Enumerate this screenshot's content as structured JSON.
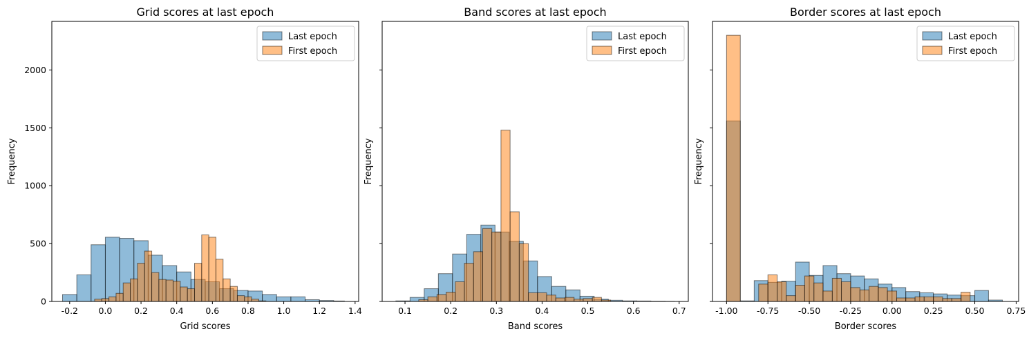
{
  "colors": {
    "last": "#1f77b4",
    "first": "#ff7f0e",
    "edge": "#000000"
  },
  "chart_data": [
    {
      "type": "bar",
      "title": "Grid scores at last epoch",
      "xlabel": "Grid scores",
      "ylabel": "Frequency",
      "xlim": [
        -0.3,
        1.42
      ],
      "ylim": [
        0,
        2420
      ],
      "xticks": [
        "-0.2",
        "0.0",
        "0.2",
        "0.4",
        "0.6",
        "0.8",
        "1.0",
        "1.2",
        "1.4"
      ],
      "xtick_values": [
        -0.2,
        0.0,
        0.2,
        0.4,
        0.6,
        0.8,
        1.0,
        1.2,
        1.4
      ],
      "yticks": [
        "0",
        "500",
        "1000",
        "1500",
        "2000"
      ],
      "ytick_values": [
        0,
        500,
        1000,
        1500,
        2000
      ],
      "legend": {
        "placement": "upper right",
        "entries": [
          "Last epoch",
          "First epoch"
        ]
      },
      "series": [
        {
          "name": "Last epoch",
          "color": "#1f77b4",
          "bin_edges": [
            -0.24,
            -0.16,
            -0.08,
            0.0,
            0.08,
            0.16,
            0.24,
            0.32,
            0.4,
            0.48,
            0.56,
            0.64,
            0.72,
            0.8,
            0.88,
            0.96,
            1.04,
            1.12,
            1.2,
            1.28,
            1.34
          ],
          "values": [
            60,
            230,
            490,
            555,
            545,
            525,
            400,
            310,
            255,
            190,
            170,
            110,
            95,
            90,
            60,
            40,
            40,
            15,
            8,
            4
          ]
        },
        {
          "name": "First epoch",
          "color": "#ff7f0e",
          "bin_edges": [
            -0.06,
            -0.02,
            0.02,
            0.06,
            0.1,
            0.14,
            0.18,
            0.22,
            0.26,
            0.3,
            0.34,
            0.38,
            0.42,
            0.46,
            0.5,
            0.54,
            0.58,
            0.62,
            0.66,
            0.7,
            0.74,
            0.78,
            0.82,
            0.86,
            0.9
          ],
          "values": [
            20,
            25,
            40,
            70,
            160,
            195,
            330,
            435,
            250,
            190,
            185,
            175,
            125,
            110,
            330,
            575,
            555,
            365,
            195,
            130,
            50,
            40,
            20,
            5
          ]
        }
      ]
    },
    {
      "type": "bar",
      "title": "Band scores at last epoch",
      "xlabel": "Band scores",
      "ylabel": "Frequency",
      "xlim": [
        0.05,
        0.72
      ],
      "ylim": [
        0,
        2420
      ],
      "xticks": [
        "0.1",
        "0.2",
        "0.3",
        "0.4",
        "0.5",
        "0.6",
        "0.7"
      ],
      "xtick_values": [
        0.1,
        0.2,
        0.3,
        0.4,
        0.5,
        0.6,
        0.7
      ],
      "yticks": [],
      "ytick_values": [
        0,
        500,
        1000,
        1500,
        2000
      ],
      "legend": {
        "placement": "upper right",
        "entries": [
          "Last epoch",
          "First epoch"
        ]
      },
      "series": [
        {
          "name": "Last epoch",
          "color": "#1f77b4",
          "bin_edges": [
            0.08,
            0.111,
            0.142,
            0.173,
            0.204,
            0.235,
            0.266,
            0.297,
            0.328,
            0.359,
            0.39,
            0.421,
            0.452,
            0.483,
            0.514,
            0.545,
            0.576,
            0.607,
            0.638,
            0.669,
            0.69
          ],
          "values": [
            5,
            35,
            110,
            240,
            410,
            580,
            660,
            600,
            520,
            350,
            215,
            130,
            100,
            45,
            20,
            10,
            5,
            4,
            2,
            1
          ]
        },
        {
          "name": "First epoch",
          "color": "#ff7f0e",
          "bin_edges": [
            0.13,
            0.15,
            0.17,
            0.19,
            0.21,
            0.23,
            0.25,
            0.27,
            0.29,
            0.31,
            0.33,
            0.35,
            0.37,
            0.39,
            0.41,
            0.43,
            0.45,
            0.47,
            0.49,
            0.51,
            0.53,
            0.55
          ],
          "values": [
            15,
            40,
            60,
            80,
            170,
            330,
            430,
            630,
            600,
            1480,
            775,
            500,
            75,
            75,
            55,
            30,
            35,
            20,
            25,
            35,
            12
          ]
        }
      ]
    },
    {
      "type": "bar",
      "title": "Border scores at last epoch",
      "xlabel": "Border scores",
      "ylabel": "Frequency",
      "xlim": [
        -1.085,
        0.765
      ],
      "ylim": [
        0,
        2420
      ],
      "xticks": [
        "-1.00",
        "-0.75",
        "-0.50",
        "-0.25",
        "0.00",
        "0.25",
        "0.50",
        "0.75"
      ],
      "xtick_values": [
        -1.0,
        -0.75,
        -0.5,
        -0.25,
        0.0,
        0.25,
        0.5,
        0.75
      ],
      "yticks": [],
      "ytick_values": [
        0,
        500,
        1000,
        1500,
        2000
      ],
      "legend": {
        "placement": "upper right",
        "entries": [
          "Last epoch",
          "First epoch"
        ]
      },
      "series": [
        {
          "name": "Last epoch",
          "color": "#1f77b4",
          "bin_edges": [
            -1.0,
            -0.917,
            -0.833,
            -0.75,
            -0.667,
            -0.583,
            -0.5,
            -0.417,
            -0.333,
            -0.25,
            -0.167,
            -0.083,
            0.0,
            0.083,
            0.167,
            0.25,
            0.333,
            0.417,
            0.5,
            0.583,
            0.667
          ],
          "values": [
            1560,
            5,
            180,
            165,
            175,
            340,
            225,
            310,
            240,
            220,
            195,
            150,
            120,
            85,
            75,
            65,
            55,
            50,
            95,
            12
          ]
        },
        {
          "name": "First epoch",
          "color": "#ff7f0e",
          "bin_edges": [
            -1.0,
            -0.917,
            -0.833,
            -0.806,
            -0.75,
            -0.694,
            -0.639,
            -0.583,
            -0.528,
            -0.472,
            -0.417,
            -0.361,
            -0.306,
            -0.25,
            -0.194,
            -0.139,
            -0.083,
            -0.028,
            0.028,
            0.083,
            0.139,
            0.194,
            0.25,
            0.306,
            0.361,
            0.417,
            0.472
          ],
          "values": [
            2300,
            0,
            0,
            150,
            230,
            170,
            50,
            140,
            220,
            160,
            90,
            200,
            170,
            120,
            100,
            130,
            120,
            90,
            30,
            30,
            40,
            40,
            40,
            25,
            25,
            80
          ]
        }
      ]
    }
  ]
}
